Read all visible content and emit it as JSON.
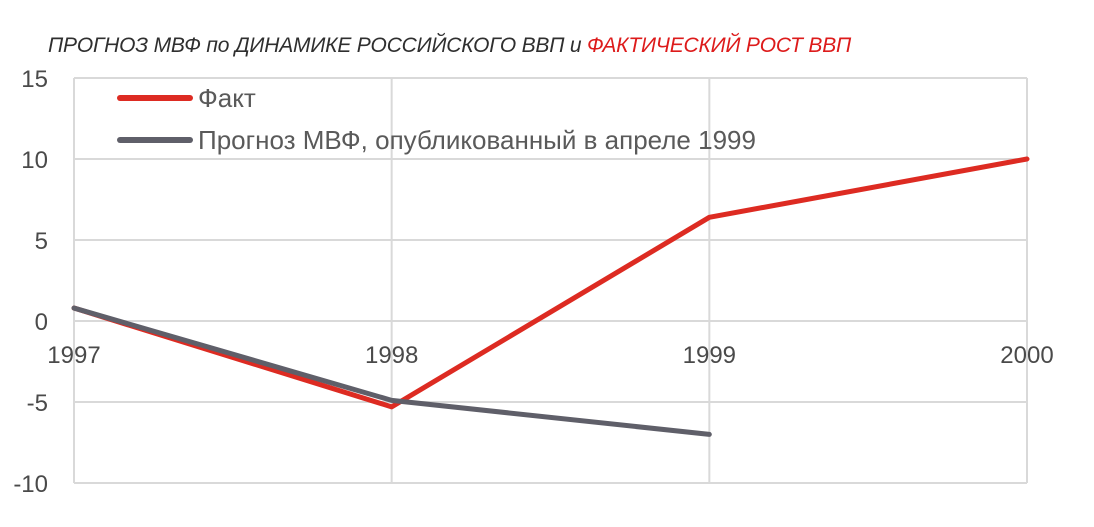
{
  "title": {
    "part1": "ПРОГНОЗ МВФ по ДИНАМИКЕ РОССИЙСКОГО ВВП",
    "part2": "и",
    "part3": "ФАКТИЧЕСКИЙ РОСТ ВВП"
  },
  "colors": {
    "fact": "#dd2b22",
    "forecast": "#5f5f69",
    "grid": "#d9d9d9",
    "title_dark": "#2f2f2f",
    "title_red": "#dd1b1b"
  },
  "chart_data": {
    "type": "line",
    "title": "ПРОГНОЗ МВФ по ДИНАМИКЕ РОССИЙСКОГО ВВП и ФАКТИЧЕСКИЙ РОСТ ВВП",
    "xlabel": "",
    "ylabel": "",
    "x_ticks": [
      "1997",
      "1998",
      "1999",
      "2000"
    ],
    "y_ticks": [
      15,
      10,
      5,
      0,
      -5,
      -10
    ],
    "ylim": [
      -10,
      15
    ],
    "grid": true,
    "legend_position": "top-left",
    "series": [
      {
        "name": "Факт",
        "x": [
          1997,
          1998,
          1999,
          2000
        ],
        "values": [
          0.8,
          -5.3,
          6.4,
          10.0
        ]
      },
      {
        "name": "Прогноз МВФ, опубликованный в апреле 1999",
        "x": [
          1997,
          1998,
          1999
        ],
        "values": [
          0.8,
          -4.9,
          -7.0
        ]
      }
    ]
  }
}
